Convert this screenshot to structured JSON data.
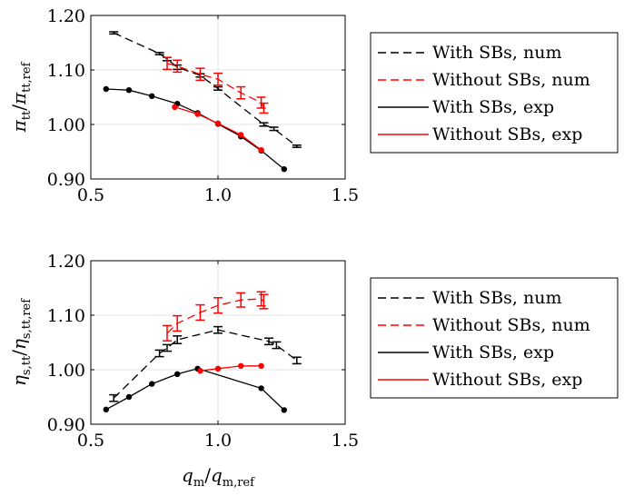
{
  "chart_data": [
    {
      "type": "line",
      "ylabel": "π_tt / π_tt,ref",
      "xlabel": "",
      "xlim": [
        0.5,
        1.5
      ],
      "ylim": [
        0.9,
        1.2
      ],
      "x_ticks": [
        "0.5",
        "1.0",
        "1.5"
      ],
      "y_ticks": [
        "0.90",
        "1.00",
        "1.10",
        "1.20"
      ],
      "grid": true,
      "legend_position": "outside-right",
      "series": [
        {
          "name": "With SBs, num",
          "style": "dashed-errorbars",
          "color": "#000000",
          "x": [
            0.59,
            0.77,
            0.8,
            0.84,
            0.93,
            1.0,
            1.18,
            1.22,
            1.31
          ],
          "y": [
            1.168,
            1.13,
            1.12,
            1.105,
            1.09,
            1.066,
            1.0,
            0.992,
            0.96
          ],
          "err": [
            0.002,
            0.002,
            0.003,
            0.004,
            0.003,
            0.003,
            0.003,
            0.003,
            0.002
          ]
        },
        {
          "name": "Without SBs, num",
          "style": "dashed-errorbars",
          "color": "#ff0000",
          "x": [
            0.8,
            0.84,
            0.93,
            1.0,
            1.09,
            1.17,
            1.18
          ],
          "y": [
            1.112,
            1.107,
            1.092,
            1.083,
            1.058,
            1.04,
            1.03
          ],
          "err": [
            0.011,
            0.011,
            0.011,
            0.011,
            0.011,
            0.01,
            0.009
          ]
        },
        {
          "name": "With SBs, exp",
          "style": "solid-markers",
          "color": "#000000",
          "x": [
            0.56,
            0.65,
            0.74,
            0.84,
            0.92,
            1.0,
            1.09,
            1.17,
            1.26
          ],
          "y": [
            1.065,
            1.063,
            1.052,
            1.038,
            1.021,
            1.001,
            0.978,
            0.952,
            0.918
          ]
        },
        {
          "name": "Without SBs, exp",
          "style": "solid-markers",
          "color": "#ff0000",
          "x": [
            0.83,
            0.92,
            1.0,
            1.09,
            1.17
          ],
          "y": [
            1.032,
            1.019,
            1.002,
            0.981,
            0.953
          ]
        }
      ]
    },
    {
      "type": "line",
      "ylabel": "η_s,tt / η_s,tt,ref",
      "xlabel": "q_m / q_m,ref",
      "xlim": [
        0.5,
        1.5
      ],
      "ylim": [
        0.9,
        1.2
      ],
      "x_ticks": [
        "0.5",
        "1.0",
        "1.5"
      ],
      "y_ticks": [
        "0.90",
        "1.00",
        "1.10",
        "1.20"
      ],
      "grid": true,
      "legend_position": "outside-right",
      "series": [
        {
          "name": "With SBs, num",
          "style": "dashed-errorbars",
          "color": "#000000",
          "x": [
            0.59,
            0.77,
            0.8,
            0.84,
            1.0,
            1.2,
            1.23,
            1.31
          ],
          "y": [
            0.948,
            1.03,
            1.04,
            1.055,
            1.073,
            1.052,
            1.045,
            1.017
          ],
          "err": [
            0.006,
            0.006,
            0.006,
            0.007,
            0.006,
            0.006,
            0.006,
            0.006
          ]
        },
        {
          "name": "Without SBs, num",
          "style": "dashed-errorbars",
          "color": "#ff0000",
          "x": [
            0.8,
            0.84,
            0.93,
            1.0,
            1.09,
            1.17,
            1.18
          ],
          "y": [
            1.067,
            1.085,
            1.105,
            1.118,
            1.128,
            1.13,
            1.125
          ],
          "err": [
            0.014,
            0.014,
            0.014,
            0.014,
            0.013,
            0.013,
            0.013
          ]
        },
        {
          "name": "With SBs, exp",
          "style": "solid-markers",
          "color": "#000000",
          "x": [
            0.56,
            0.65,
            0.74,
            0.84,
            0.92,
            1.17,
            1.26
          ],
          "y": [
            0.927,
            0.95,
            0.974,
            0.992,
            1.002,
            0.966,
            0.926
          ]
        },
        {
          "name": "Without SBs, exp",
          "style": "solid-markers",
          "color": "#ff0000",
          "x": [
            0.93,
            1.0,
            1.09,
            1.17
          ],
          "y": [
            0.998,
            1.002,
            1.007,
            1.007
          ]
        }
      ]
    }
  ]
}
